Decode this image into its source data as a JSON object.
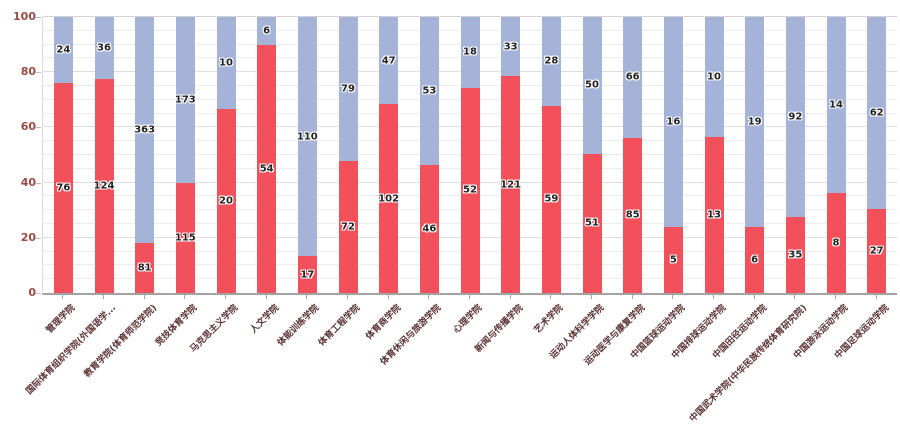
{
  "chart_data": {
    "type": "bar",
    "subtype": "percent-stacked-column",
    "title": "",
    "xlabel": "",
    "ylabel": "",
    "legend": "none",
    "grid": true,
    "y_axis": {
      "min": 0,
      "max": 100,
      "major_ticks": [
        0,
        20,
        40,
        60,
        80,
        100
      ],
      "minor_step": 5
    },
    "categories": [
      "管理学院",
      "国际体育组织学院(外国语学...",
      "教育学院(体育师范学院)",
      "竞技体育学院",
      "马克思主义学院",
      "人文学院",
      "体能训练学院",
      "体育工程学院",
      "体育商学院",
      "体育休闲与旅游学院",
      "心理学院",
      "新闻与传播学院",
      "艺术学院",
      "运动人体科学学院",
      "运动医学与康复学院",
      "中国篮球运动学院",
      "中国排球运动学院",
      "中国田径运动学院",
      "中国武术学院(中华民族传统体育研究院)",
      "中国游泳运动学院",
      "中国足球运动学院"
    ],
    "series": [
      {
        "name": "bottom-segment-red",
        "color": "#f2505a",
        "values": [
          76,
          124,
          81,
          115,
          20,
          54,
          17,
          72,
          102,
          46,
          52,
          121,
          59,
          51,
          85,
          5,
          13,
          6,
          35,
          8,
          27
        ]
      },
      {
        "name": "top-segment-blue",
        "color": "#a4b3d7",
        "values": [
          24,
          36,
          363,
          173,
          10,
          6,
          110,
          79,
          47,
          53,
          18,
          33,
          28,
          50,
          66,
          16,
          10,
          19,
          92,
          14,
          62
        ]
      }
    ],
    "value_labels_shown": true
  },
  "style": {
    "axis_tick_label_color": "#9a4a42",
    "category_label_color": "#5c3434",
    "value_label_color": "#222222",
    "gridline_color": "#ececec",
    "axis_line_color": "#a3a3a3",
    "background_color": "#ffffff"
  }
}
